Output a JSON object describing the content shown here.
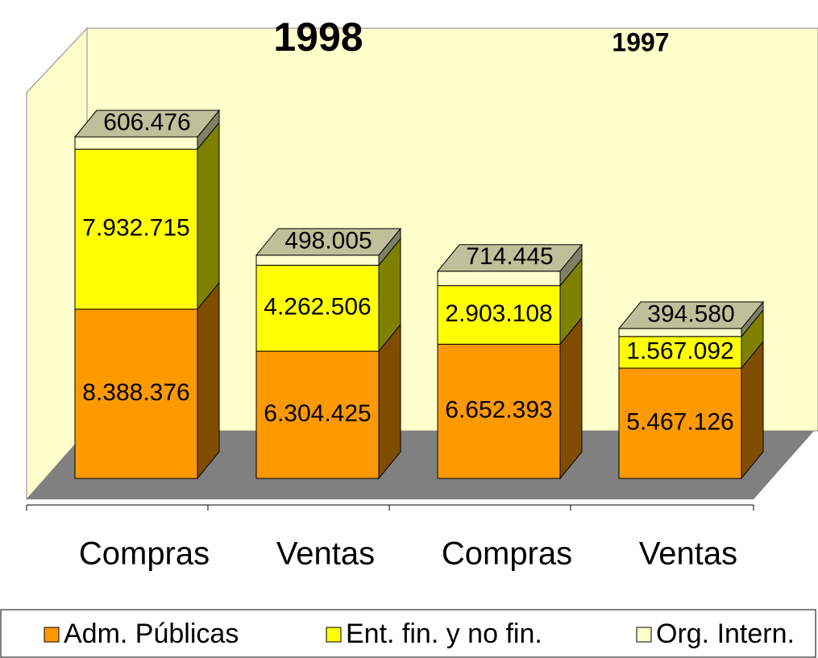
{
  "chart_data": {
    "type": "bar3d_stacked",
    "annotations": [
      "1998",
      "1997"
    ],
    "categories": [
      "Compras",
      "Ventas",
      "Compras",
      "Ventas"
    ],
    "series": [
      {
        "name": "Adm. Públicas",
        "color": "#ff9900",
        "values": [
          8388376,
          6304425,
          6652393,
          5467126
        ],
        "value_labels": [
          "8.388.376",
          "6.304.425",
          "6.652.393",
          "5.467.126"
        ]
      },
      {
        "name": "Ent. fin. y no fin.",
        "color": "#ffff00",
        "values": [
          7932715,
          4262506,
          2903108,
          1567092
        ],
        "value_labels": [
          "7.932.715",
          "4.262.506",
          "2.903.108",
          "1.567.092"
        ]
      },
      {
        "name": "Org. Intern.",
        "color": "#ffffcc",
        "values": [
          606476,
          498005,
          714445,
          394580
        ],
        "value_labels": [
          "606.476",
          "498.005",
          "714.445",
          "394.580"
        ]
      }
    ],
    "legend": "bottom"
  }
}
